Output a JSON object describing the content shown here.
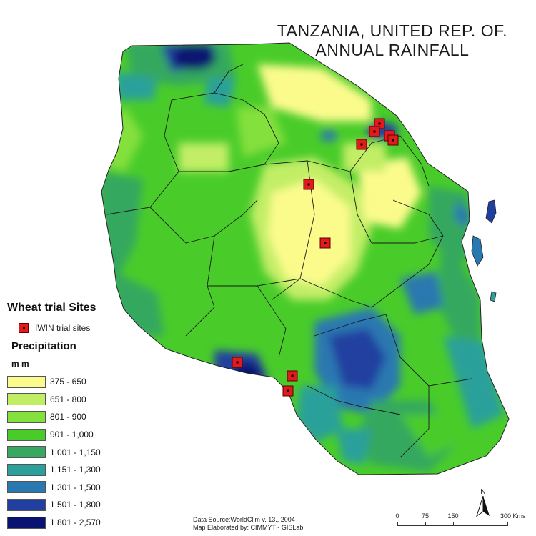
{
  "title": {
    "line1": "TANZANIA, UNITED REP. OF.",
    "line2": "ANNUAL RAINFALL"
  },
  "legend": {
    "sites_heading": "Wheat trial Sites",
    "site_label": "IWIN trial sites",
    "site_color": "#e31a1c",
    "precip_heading": "Precipitation",
    "unit": "m m",
    "classes": [
      {
        "label": "375 - 650",
        "color": "#fbfb8c"
      },
      {
        "label": "651 - 800",
        "color": "#c2ee66"
      },
      {
        "label": "801 - 900",
        "color": "#84e03c"
      },
      {
        "label": "901 - 1,000",
        "color": "#49cc2a"
      },
      {
        "label": "1,001 - 1,150",
        "color": "#36a85f"
      },
      {
        "label": "1,151 - 1,300",
        "color": "#2ba09a"
      },
      {
        "label": "1,301 - 1,500",
        "color": "#2a78b0"
      },
      {
        "label": "1,501 - 1,800",
        "color": "#203fa0"
      },
      {
        "label": "1,801 - 2,570",
        "color": "#0b1370"
      }
    ]
  },
  "credits": {
    "line1": "Data Source:WorldClim v. 13., 2004",
    "line2": "Map Elaborated by: CIMMYT - GISLab"
  },
  "scalebar": {
    "labels": [
      "0",
      "75",
      "150",
      "300 Kms"
    ]
  },
  "north_arrow": {
    "letter": "N",
    "icon": "north-arrow-icon"
  }
}
